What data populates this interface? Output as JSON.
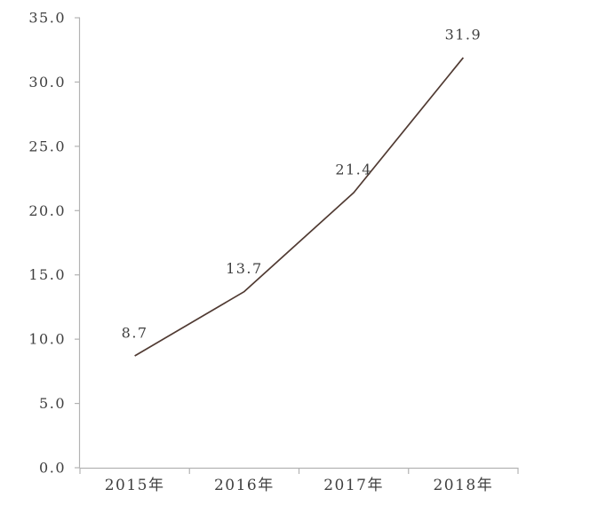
{
  "chart_data": {
    "type": "line",
    "categories": [
      "2015年",
      "2016年",
      "2017年",
      "2018年"
    ],
    "series": [
      {
        "name": "value",
        "values": [
          8.7,
          13.7,
          21.4,
          31.9
        ],
        "data_labels": [
          "8.7",
          "13.7",
          "21.4",
          "31.9"
        ]
      }
    ],
    "title": "",
    "xlabel": "",
    "ylabel": "",
    "ylim": [
      0,
      35
    ],
    "ytick_step": 5,
    "ytick_labels": [
      "0.0",
      "5.0",
      "10.0",
      "15.0",
      "20.0",
      "25.0",
      "30.0",
      "35.0"
    ],
    "grid": false,
    "legend": "none",
    "markers": "none",
    "colors": {
      "line": "#503a32",
      "axis": "#b3b3b3",
      "text": "#3f3f3f",
      "background": "#ffffff"
    }
  }
}
